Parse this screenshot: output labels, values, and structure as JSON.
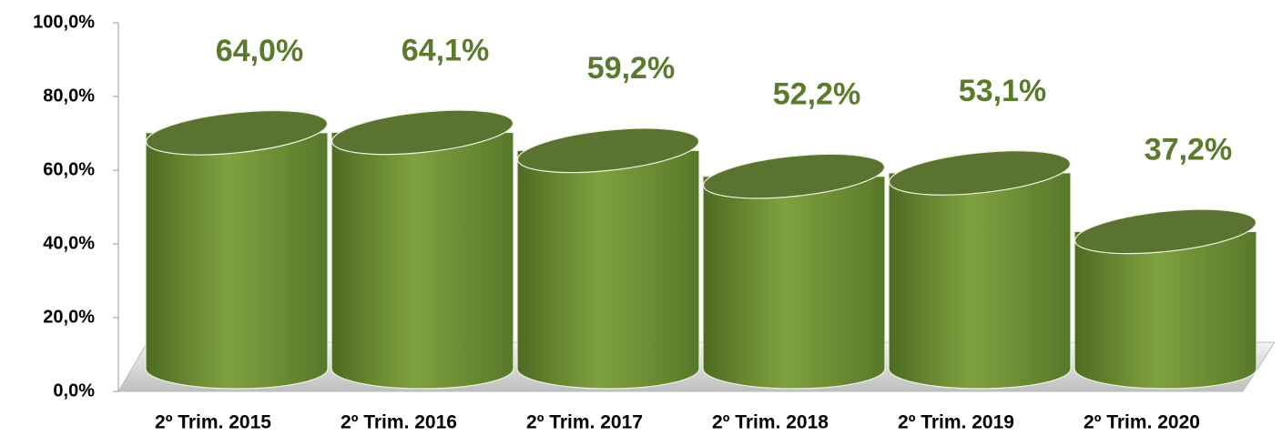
{
  "chart_data": {
    "type": "bar",
    "categories": [
      "2º Trim. 2015",
      "2º Trim. 2016",
      "2º Trim. 2017",
      "2º Trim. 2018",
      "2º Trim. 2019",
      "2º Trim. 2020"
    ],
    "values": [
      64.0,
      64.1,
      59.2,
      52.2,
      53.1,
      37.2
    ],
    "value_labels": [
      "64,0%",
      "64,1%",
      "59,2%",
      "52,2%",
      "53,1%",
      "37,2%"
    ],
    "color": "#76973a",
    "ylim": [
      0,
      100
    ],
    "yticks": [
      {
        "value": 0,
        "label": "0,0%"
      },
      {
        "value": 20,
        "label": "20,0%"
      },
      {
        "value": 40,
        "label": "40,0%"
      },
      {
        "value": 60,
        "label": "60,0%"
      },
      {
        "value": 80,
        "label": "80,0%"
      },
      {
        "value": 100,
        "label": "100,0%"
      }
    ]
  }
}
